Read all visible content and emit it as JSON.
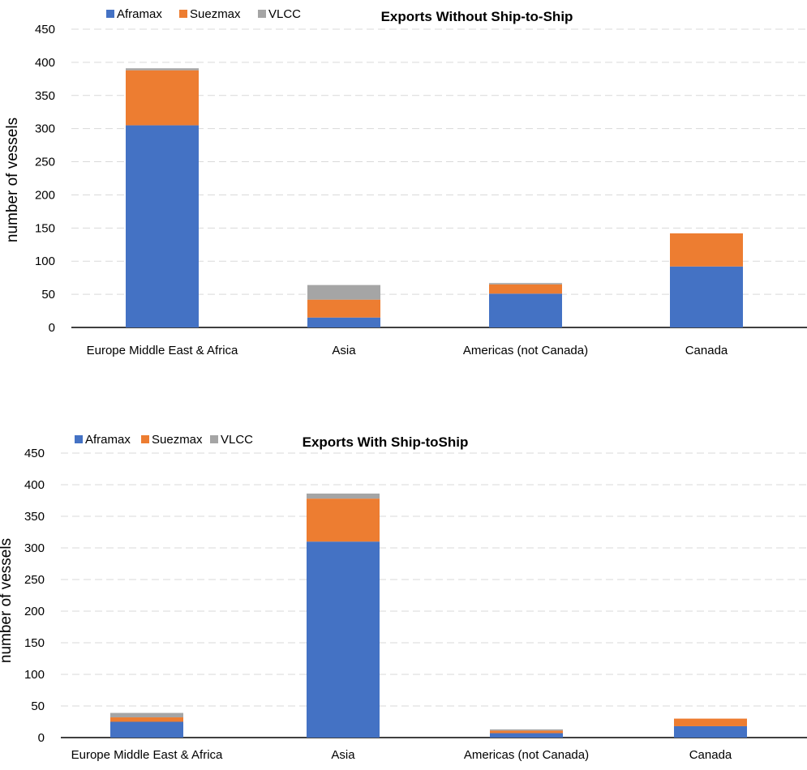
{
  "chart_data": [
    {
      "type": "bar",
      "stacked": true,
      "title": "Exports Without  Ship-to-Ship",
      "xlabel": "",
      "ylabel": "number of vessels",
      "ylim": [
        0,
        450
      ],
      "yticks": [
        0,
        50,
        100,
        150,
        200,
        250,
        300,
        350,
        400,
        450
      ],
      "grid": true,
      "legend_position": "top-left",
      "categories": [
        "Europe Middle East & Africa",
        "Asia",
        "Americas (not Canada)",
        "Canada"
      ],
      "series": [
        {
          "name": "Aframax",
          "color": "#4472C4",
          "values": [
            305,
            15,
            51,
            92
          ]
        },
        {
          "name": "Suezmax",
          "color": "#ED7D31",
          "values": [
            83,
            27,
            14,
            50
          ]
        },
        {
          "name": "VLCC",
          "color": "#A5A5A5",
          "values": [
            3,
            22,
            2,
            0
          ]
        }
      ]
    },
    {
      "type": "bar",
      "stacked": true,
      "title": "Exports With Ship-toShip",
      "xlabel": "",
      "ylabel": "number of vessels",
      "ylim": [
        0,
        450
      ],
      "yticks": [
        0,
        50,
        100,
        150,
        200,
        250,
        300,
        350,
        400,
        450
      ],
      "grid": true,
      "legend_position": "top-left",
      "categories": [
        "Europe Middle East & Africa",
        "Asia",
        "Americas (not Canada)",
        "Canada"
      ],
      "series": [
        {
          "name": "Aframax",
          "color": "#4472C4",
          "values": [
            25,
            310,
            7,
            18
          ]
        },
        {
          "name": "Suezmax",
          "color": "#ED7D31",
          "values": [
            7,
            68,
            4,
            12
          ]
        },
        {
          "name": "VLCC",
          "color": "#A5A5A5",
          "values": [
            7,
            8,
            2,
            0
          ]
        }
      ]
    }
  ]
}
